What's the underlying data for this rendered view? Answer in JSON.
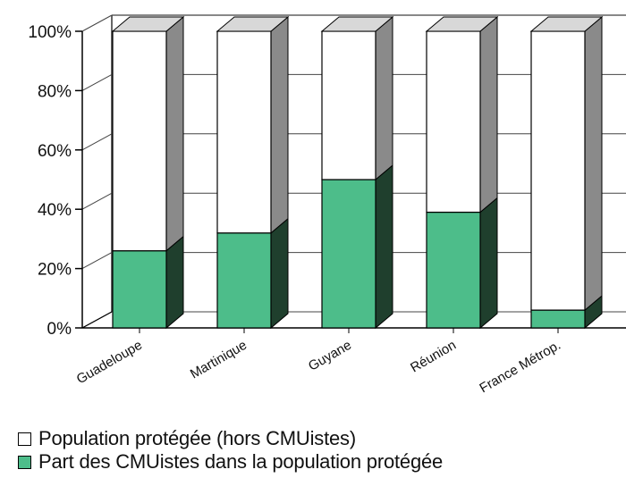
{
  "chart_data": {
    "type": "bar",
    "stacked": true,
    "three_d": true,
    "categories": [
      "Guadeloupe",
      "Martinique",
      "Guyane",
      "Réunion",
      "France Métrop."
    ],
    "series": [
      {
        "name": "Part des CMUistes dans la population protégée",
        "values": [
          26,
          32,
          50,
          39,
          6
        ],
        "color": "#4dbd8a"
      },
      {
        "name": "Population protégée (hors CMUistes)",
        "values": [
          74,
          68,
          50,
          61,
          94
        ],
        "color": "#ffffff"
      }
    ],
    "y_ticks": [
      "0%",
      "20%",
      "40%",
      "60%",
      "80%",
      "100%"
    ],
    "ylim": [
      0,
      100
    ],
    "grid": true,
    "legend_position": "bottom"
  },
  "legend": [
    {
      "label": "Population protégée (hors CMUistes)",
      "color": "#ffffff"
    },
    {
      "label": "Part des CMUistes dans la population protégée",
      "color": "#4dbd8a"
    }
  ]
}
